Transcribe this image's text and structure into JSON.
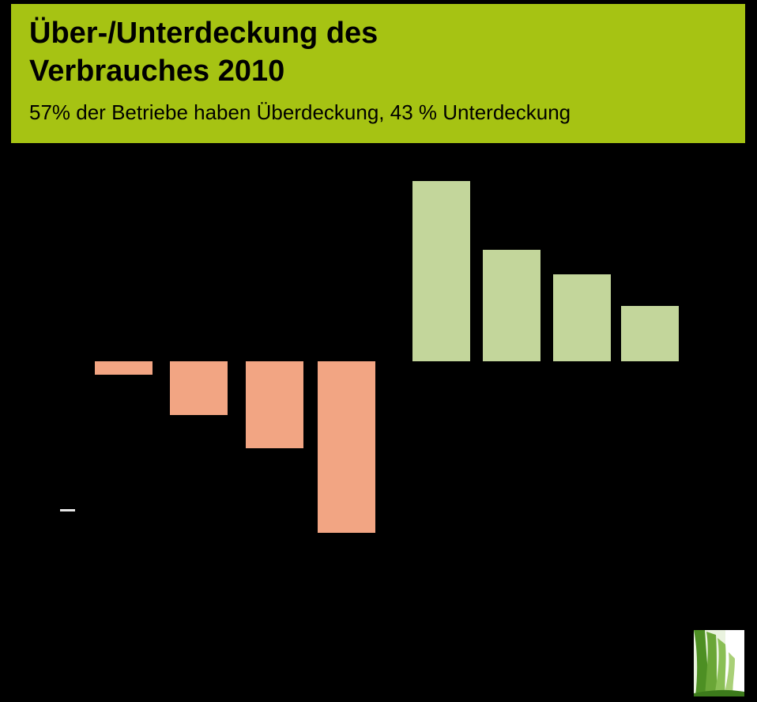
{
  "header": {
    "title_line1": "Über-/Unterdeckung des",
    "title_line2": "Verbrauches 2010",
    "subtitle": "57% der Betriebe haben Überdeckung, 43 % Unterdeckung",
    "background_color": "#a6c313",
    "text_color": "#000000"
  },
  "chart_data": {
    "type": "bar",
    "title": "Über-/Unterdeckung des Verbrauches 2010",
    "categories": [
      "",
      "",
      "",
      "",
      "",
      "",
      "",
      ""
    ],
    "values": [
      -17,
      -68,
      -110,
      -217,
      228,
      141,
      110,
      70
    ],
    "units": "relative (no axis labels visible)",
    "colors": {
      "negative": "#f2a583",
      "positive": "#c3d69b"
    },
    "background": "#000000",
    "axis_labels_visible": false,
    "grid": false,
    "legend": false
  },
  "icons": {
    "grass_logo": "grass-photo"
  }
}
